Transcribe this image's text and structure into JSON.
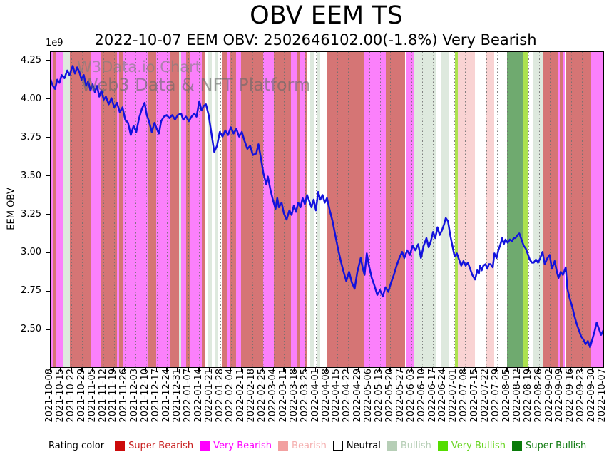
{
  "watermark": {
    "line1": "W3Data.io Chart",
    "line2": "Web3 Data & NFT Platform"
  },
  "legend": {
    "prefix": "Rating color",
    "order": [
      "SB",
      "VB",
      "BE",
      "NE",
      "BU",
      "VU",
      "SU"
    ]
  },
  "chart_data": {
    "type": "line",
    "title": "OBV EEM TS",
    "subtitle": "2022-10-07 EEM OBV: 2502646102.00(-1.8%) Very Bearish",
    "ylabel": "EEM OBV",
    "y_multiplier": "1e9",
    "last_value": "2502646102.00",
    "last_change_pct": "-1.8%",
    "last_rating": "Very Bearish",
    "line_color": "#1212dd",
    "grid": "vertical-dotted",
    "legend_position": "bottom",
    "ylim": [
      2.26,
      4.31
    ],
    "y_ticks": [
      "4.25",
      "4.00",
      "3.75",
      "3.50",
      "3.25",
      "3.00",
      "2.75",
      "2.50"
    ],
    "x_ticks": [
      "2021-10-08",
      "2021-10-15",
      "2021-10-22",
      "2021-10-29",
      "2021-11-05",
      "2021-11-12",
      "2021-11-19",
      "2021-11-26",
      "2021-12-03",
      "2021-12-10",
      "2021-12-17",
      "2021-12-24",
      "2021-12-31",
      "2022-01-07",
      "2022-01-14",
      "2022-01-21",
      "2022-01-28",
      "2022-02-04",
      "2022-02-11",
      "2022-02-18",
      "2022-02-25",
      "2022-03-04",
      "2022-03-11",
      "2022-03-18",
      "2022-03-25",
      "2022-04-01",
      "2022-04-08",
      "2022-04-15",
      "2022-04-22",
      "2022-04-29",
      "2022-05-06",
      "2022-05-13",
      "2022-05-20",
      "2022-05-27",
      "2022-06-03",
      "2022-06-10",
      "2022-06-17",
      "2022-06-24",
      "2022-07-01",
      "2022-07-08",
      "2022-07-15",
      "2022-07-22",
      "2022-07-29",
      "2022-08-05",
      "2022-08-12",
      "2022-08-19",
      "2022-08-26",
      "2022-09-02",
      "2022-09-09",
      "2022-09-16",
      "2022-09-23",
      "2022-09-30",
      "2022-10-07"
    ],
    "rating_colors": {
      "SB": {
        "label": "Super Bearish",
        "band": "#d57575",
        "swatch": "#cc0a0a",
        "text": "#c81e1e"
      },
      "VB": {
        "label": "Very Bearish",
        "band": "#fb80fb",
        "swatch": "#ff00ff",
        "text": "#ff00ff"
      },
      "BE": {
        "label": "Bearish",
        "band": "#f9d3d3",
        "swatch": "#f2a0a0",
        "text": "#f5b0b0"
      },
      "NE": {
        "label": "Neutral",
        "band": "#ffffff",
        "swatch": "#ffffff",
        "text": "#000000"
      },
      "BU": {
        "label": "Bullish",
        "band": "#dee9de",
        "swatch": "#b6ceb6",
        "text": "#b6ceb6"
      },
      "VU": {
        "label": "Very Bullish",
        "band": "#ace24f",
        "swatch": "#55dd00",
        "text": "#66d41e"
      },
      "SU": {
        "label": "Super Bullish",
        "band": "#6faa6f",
        "swatch": "#0a7a0a",
        "text": "#117a11"
      }
    },
    "rating_bands": [
      [
        0.0,
        0.005,
        "VB"
      ],
      [
        0.005,
        0.01,
        "SB"
      ],
      [
        0.01,
        0.023,
        "VB"
      ],
      [
        0.023,
        0.035,
        "BU"
      ],
      [
        0.035,
        0.072,
        "SB"
      ],
      [
        0.072,
        0.09,
        "VB"
      ],
      [
        0.09,
        0.12,
        "SB"
      ],
      [
        0.12,
        0.124,
        "VB"
      ],
      [
        0.124,
        0.132,
        "SB"
      ],
      [
        0.132,
        0.177,
        "VB"
      ],
      [
        0.177,
        0.191,
        "SB"
      ],
      [
        0.191,
        0.217,
        "VB"
      ],
      [
        0.217,
        0.232,
        "SB"
      ],
      [
        0.232,
        0.236,
        "BU"
      ],
      [
        0.236,
        0.245,
        "VB"
      ],
      [
        0.245,
        0.252,
        "SB"
      ],
      [
        0.252,
        0.274,
        "VB"
      ],
      [
        0.274,
        0.28,
        "SB"
      ],
      [
        0.28,
        0.284,
        "NE"
      ],
      [
        0.284,
        0.292,
        "BU"
      ],
      [
        0.292,
        0.298,
        "NE"
      ],
      [
        0.298,
        0.302,
        "BU"
      ],
      [
        0.302,
        0.31,
        "NE"
      ],
      [
        0.31,
        0.319,
        "SB"
      ],
      [
        0.319,
        0.325,
        "VB"
      ],
      [
        0.325,
        0.335,
        "SB"
      ],
      [
        0.335,
        0.345,
        "VB"
      ],
      [
        0.345,
        0.385,
        "SB"
      ],
      [
        0.385,
        0.404,
        "VB"
      ],
      [
        0.404,
        0.435,
        "SB"
      ],
      [
        0.435,
        0.445,
        "VB"
      ],
      [
        0.445,
        0.452,
        "SB"
      ],
      [
        0.452,
        0.459,
        "VB"
      ],
      [
        0.459,
        0.464,
        "SB"
      ],
      [
        0.464,
        0.469,
        "NE"
      ],
      [
        0.469,
        0.478,
        "BU"
      ],
      [
        0.478,
        0.483,
        "NE"
      ],
      [
        0.483,
        0.488,
        "BU"
      ],
      [
        0.488,
        0.5,
        "NE"
      ],
      [
        0.5,
        0.568,
        "SB"
      ],
      [
        0.568,
        0.606,
        "VB"
      ],
      [
        0.606,
        0.642,
        "SB"
      ],
      [
        0.642,
        0.658,
        "VB"
      ],
      [
        0.658,
        0.697,
        "BU"
      ],
      [
        0.697,
        0.706,
        "NE"
      ],
      [
        0.706,
        0.72,
        "BU"
      ],
      [
        0.72,
        0.732,
        "NE"
      ],
      [
        0.732,
        0.737,
        "VU"
      ],
      [
        0.737,
        0.768,
        "BE"
      ],
      [
        0.768,
        0.787,
        "NE"
      ],
      [
        0.787,
        0.803,
        "BE"
      ],
      [
        0.803,
        0.826,
        "NE"
      ],
      [
        0.826,
        0.854,
        "SU"
      ],
      [
        0.854,
        0.864,
        "VU"
      ],
      [
        0.864,
        0.874,
        "NE"
      ],
      [
        0.874,
        0.89,
        "BU"
      ],
      [
        0.89,
        0.917,
        "SB"
      ],
      [
        0.917,
        0.921,
        "VB"
      ],
      [
        0.921,
        0.927,
        "SB"
      ],
      [
        0.927,
        0.931,
        "VB"
      ],
      [
        0.931,
        0.978,
        "SB"
      ],
      [
        0.978,
        1.0,
        "VB"
      ]
    ],
    "line": [
      [
        0.0,
        4.13
      ],
      [
        0.004,
        4.09
      ],
      [
        0.008,
        4.07
      ],
      [
        0.012,
        4.13
      ],
      [
        0.016,
        4.11
      ],
      [
        0.02,
        4.16
      ],
      [
        0.025,
        4.14
      ],
      [
        0.03,
        4.19
      ],
      [
        0.034,
        4.16
      ],
      [
        0.04,
        4.22
      ],
      [
        0.044,
        4.17
      ],
      [
        0.048,
        4.21
      ],
      [
        0.052,
        4.18
      ],
      [
        0.056,
        4.13
      ],
      [
        0.06,
        4.16
      ],
      [
        0.064,
        4.09
      ],
      [
        0.068,
        4.12
      ],
      [
        0.072,
        4.06
      ],
      [
        0.076,
        4.1
      ],
      [
        0.08,
        4.05
      ],
      [
        0.084,
        4.09
      ],
      [
        0.088,
        4.02
      ],
      [
        0.092,
        4.06
      ],
      [
        0.096,
        4.0
      ],
      [
        0.1,
        4.02
      ],
      [
        0.105,
        3.97
      ],
      [
        0.11,
        4.01
      ],
      [
        0.115,
        3.95
      ],
      [
        0.12,
        3.98
      ],
      [
        0.125,
        3.92
      ],
      [
        0.13,
        3.95
      ],
      [
        0.135,
        3.87
      ],
      [
        0.14,
        3.85
      ],
      [
        0.145,
        3.77
      ],
      [
        0.15,
        3.83
      ],
      [
        0.155,
        3.79
      ],
      [
        0.16,
        3.88
      ],
      [
        0.165,
        3.94
      ],
      [
        0.17,
        3.98
      ],
      [
        0.174,
        3.9
      ],
      [
        0.178,
        3.86
      ],
      [
        0.183,
        3.79
      ],
      [
        0.188,
        3.85
      ],
      [
        0.192,
        3.81
      ],
      [
        0.196,
        3.78
      ],
      [
        0.2,
        3.86
      ],
      [
        0.205,
        3.89
      ],
      [
        0.21,
        3.9
      ],
      [
        0.215,
        3.88
      ],
      [
        0.22,
        3.9
      ],
      [
        0.225,
        3.87
      ],
      [
        0.23,
        3.9
      ],
      [
        0.236,
        3.91
      ],
      [
        0.24,
        3.87
      ],
      [
        0.245,
        3.89
      ],
      [
        0.25,
        3.86
      ],
      [
        0.255,
        3.89
      ],
      [
        0.26,
        3.91
      ],
      [
        0.264,
        3.89
      ],
      [
        0.269,
        3.99
      ],
      [
        0.273,
        3.93
      ],
      [
        0.277,
        3.96
      ],
      [
        0.281,
        3.97
      ],
      [
        0.286,
        3.9
      ],
      [
        0.291,
        3.78
      ],
      [
        0.296,
        3.66
      ],
      [
        0.301,
        3.7
      ],
      [
        0.306,
        3.79
      ],
      [
        0.311,
        3.76
      ],
      [
        0.316,
        3.8
      ],
      [
        0.321,
        3.77
      ],
      [
        0.326,
        3.82
      ],
      [
        0.331,
        3.78
      ],
      [
        0.336,
        3.81
      ],
      [
        0.341,
        3.76
      ],
      [
        0.346,
        3.79
      ],
      [
        0.351,
        3.73
      ],
      [
        0.356,
        3.68
      ],
      [
        0.361,
        3.7
      ],
      [
        0.366,
        3.64
      ],
      [
        0.372,
        3.65
      ],
      [
        0.376,
        3.71
      ],
      [
        0.38,
        3.63
      ],
      [
        0.385,
        3.52
      ],
      [
        0.39,
        3.45
      ],
      [
        0.393,
        3.5
      ],
      [
        0.398,
        3.41
      ],
      [
        0.402,
        3.35
      ],
      [
        0.407,
        3.29
      ],
      [
        0.41,
        3.36
      ],
      [
        0.413,
        3.3
      ],
      [
        0.418,
        3.33
      ],
      [
        0.422,
        3.26
      ],
      [
        0.427,
        3.22
      ],
      [
        0.432,
        3.28
      ],
      [
        0.436,
        3.25
      ],
      [
        0.44,
        3.31
      ],
      [
        0.444,
        3.27
      ],
      [
        0.448,
        3.33
      ],
      [
        0.452,
        3.3
      ],
      [
        0.456,
        3.36
      ],
      [
        0.46,
        3.32
      ],
      [
        0.464,
        3.38
      ],
      [
        0.468,
        3.34
      ],
      [
        0.472,
        3.3
      ],
      [
        0.476,
        3.35
      ],
      [
        0.48,
        3.28
      ],
      [
        0.484,
        3.4
      ],
      [
        0.488,
        3.35
      ],
      [
        0.492,
        3.38
      ],
      [
        0.496,
        3.33
      ],
      [
        0.5,
        3.36
      ],
      [
        0.505,
        3.28
      ],
      [
        0.51,
        3.21
      ],
      [
        0.515,
        3.12
      ],
      [
        0.52,
        3.03
      ],
      [
        0.525,
        2.95
      ],
      [
        0.53,
        2.88
      ],
      [
        0.535,
        2.82
      ],
      [
        0.54,
        2.88
      ],
      [
        0.545,
        2.81
      ],
      [
        0.55,
        2.77
      ],
      [
        0.555,
        2.88
      ],
      [
        0.561,
        2.97
      ],
      [
        0.565,
        2.9
      ],
      [
        0.568,
        2.86
      ],
      [
        0.572,
        3.0
      ],
      [
        0.576,
        2.92
      ],
      [
        0.581,
        2.84
      ],
      [
        0.586,
        2.79
      ],
      [
        0.591,
        2.73
      ],
      [
        0.596,
        2.76
      ],
      [
        0.601,
        2.72
      ],
      [
        0.606,
        2.78
      ],
      [
        0.611,
        2.75
      ],
      [
        0.616,
        2.81
      ],
      [
        0.621,
        2.86
      ],
      [
        0.626,
        2.92
      ],
      [
        0.631,
        2.97
      ],
      [
        0.636,
        3.01
      ],
      [
        0.64,
        2.97
      ],
      [
        0.645,
        3.02
      ],
      [
        0.65,
        2.99
      ],
      [
        0.655,
        3.05
      ],
      [
        0.66,
        3.02
      ],
      [
        0.665,
        3.06
      ],
      [
        0.67,
        2.97
      ],
      [
        0.675,
        3.05
      ],
      [
        0.68,
        3.1
      ],
      [
        0.684,
        3.04
      ],
      [
        0.688,
        3.08
      ],
      [
        0.692,
        3.14
      ],
      [
        0.696,
        3.1
      ],
      [
        0.7,
        3.17
      ],
      [
        0.704,
        3.12
      ],
      [
        0.708,
        3.15
      ],
      [
        0.712,
        3.19
      ],
      [
        0.715,
        3.23
      ],
      [
        0.719,
        3.21
      ],
      [
        0.723,
        3.12
      ],
      [
        0.727,
        3.05
      ],
      [
        0.731,
        2.98
      ],
      [
        0.735,
        3.0
      ],
      [
        0.739,
        2.96
      ],
      [
        0.743,
        2.92
      ],
      [
        0.747,
        2.95
      ],
      [
        0.751,
        2.92
      ],
      [
        0.755,
        2.94
      ],
      [
        0.759,
        2.9
      ],
      [
        0.763,
        2.86
      ],
      [
        0.768,
        2.83
      ],
      [
        0.772,
        2.89
      ],
      [
        0.775,
        2.87
      ],
      [
        0.777,
        2.92
      ],
      [
        0.78,
        2.89
      ],
      [
        0.783,
        2.92
      ],
      [
        0.787,
        2.93
      ],
      [
        0.79,
        2.9
      ],
      [
        0.793,
        2.93
      ],
      [
        0.796,
        2.93
      ],
      [
        0.8,
        2.91
      ],
      [
        0.803,
        3.0
      ],
      [
        0.807,
        2.97
      ],
      [
        0.81,
        3.02
      ],
      [
        0.814,
        3.06
      ],
      [
        0.817,
        3.1
      ],
      [
        0.82,
        3.06
      ],
      [
        0.823,
        3.09
      ],
      [
        0.827,
        3.07
      ],
      [
        0.831,
        3.09
      ],
      [
        0.835,
        3.08
      ],
      [
        0.838,
        3.1
      ],
      [
        0.841,
        3.1
      ],
      [
        0.845,
        3.12
      ],
      [
        0.848,
        3.13
      ],
      [
        0.852,
        3.09
      ],
      [
        0.856,
        3.05
      ],
      [
        0.86,
        3.03
      ],
      [
        0.864,
        2.99
      ],
      [
        0.867,
        2.96
      ],
      [
        0.871,
        2.94
      ],
      [
        0.874,
        2.94
      ],
      [
        0.878,
        2.96
      ],
      [
        0.882,
        2.94
      ],
      [
        0.886,
        2.97
      ],
      [
        0.89,
        3.01
      ],
      [
        0.894,
        2.93
      ],
      [
        0.899,
        2.97
      ],
      [
        0.903,
        2.99
      ],
      [
        0.907,
        2.9
      ],
      [
        0.912,
        2.95
      ],
      [
        0.916,
        2.88
      ],
      [
        0.919,
        2.84
      ],
      [
        0.923,
        2.88
      ],
      [
        0.927,
        2.86
      ],
      [
        0.932,
        2.91
      ],
      [
        0.935,
        2.77
      ],
      [
        0.939,
        2.71
      ],
      [
        0.944,
        2.65
      ],
      [
        0.948,
        2.59
      ],
      [
        0.952,
        2.54
      ],
      [
        0.956,
        2.5
      ],
      [
        0.96,
        2.46
      ],
      [
        0.964,
        2.44
      ],
      [
        0.968,
        2.41
      ],
      [
        0.972,
        2.43
      ],
      [
        0.976,
        2.39
      ],
      [
        0.98,
        2.44
      ],
      [
        0.984,
        2.49
      ],
      [
        0.988,
        2.55
      ],
      [
        0.992,
        2.51
      ],
      [
        0.996,
        2.47
      ],
      [
        1.0,
        2.5
      ]
    ]
  }
}
